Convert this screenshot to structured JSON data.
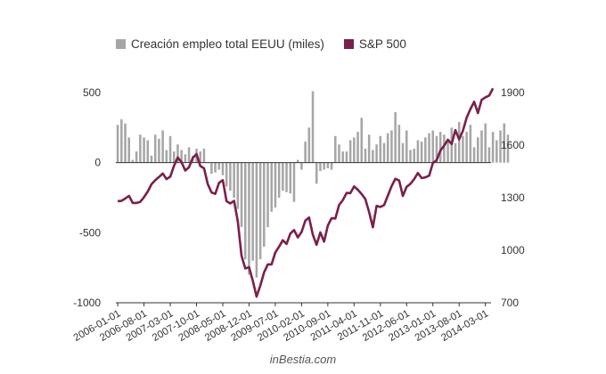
{
  "legend": {
    "bars_label": "Creación empleo total EEUU (miles)",
    "line_label": "S&P 500"
  },
  "credit": "inBestia.com",
  "colors": {
    "bars": "#a6a6a6",
    "line": "#7b1f4b",
    "axis": "#555555"
  },
  "chart_data": {
    "type": "bar+line",
    "x_tick_labels": [
      "2006-01-01",
      "2006-08-01",
      "2007-03-01",
      "2007-10-01",
      "2008-05-01",
      "2008-12-01",
      "2009-07-01",
      "2010-02-01",
      "2010-09-01",
      "2011-04-01",
      "2011-11-01",
      "2012-06-01",
      "2013-01-01",
      "2013-08-01",
      "2014-03-01"
    ],
    "series": [
      {
        "name": "Creación empleo total EEUU (miles)",
        "type": "bar",
        "axis": "left",
        "start": "2006-01",
        "values": [
          270,
          310,
          280,
          180,
          20,
          80,
          200,
          180,
          160,
          50,
          200,
          170,
          230,
          90,
          190,
          80,
          130,
          90,
          60,
          110,
          50,
          100,
          80,
          100,
          0,
          -80,
          -70,
          -50,
          -90,
          -170,
          -200,
          -250,
          -330,
          -460,
          -690,
          -800,
          -700,
          -820,
          -690,
          -600,
          -460,
          -350,
          -320,
          -250,
          -200,
          -210,
          -220,
          -280,
          20,
          -50,
          150,
          250,
          510,
          -150,
          -60,
          -50,
          -40,
          -50,
          190,
          130,
          80,
          80,
          160,
          180,
          220,
          320,
          100,
          200,
          90,
          130,
          190,
          140,
          210,
          230,
          360,
          270,
          140,
          230,
          90,
          100,
          160,
          150,
          180,
          210,
          230,
          190,
          220,
          200,
          170,
          250,
          140,
          290,
          190,
          220,
          270,
          110,
          180,
          230,
          280,
          110,
          220,
          160,
          230,
          280,
          200
        ],
        "ylim": [
          -1000,
          500
        ],
        "y_ticks": [
          500,
          0,
          -500,
          -1000
        ]
      },
      {
        "name": "S&P 500",
        "type": "line",
        "axis": "right",
        "start": "2006-01",
        "values": [
          1280,
          1282,
          1295,
          1310,
          1270,
          1270,
          1276,
          1303,
          1335,
          1377,
          1400,
          1418,
          1438,
          1406,
          1420,
          1482,
          1530,
          1503,
          1455,
          1474,
          1527,
          1549,
          1481,
          1468,
          1378,
          1330,
          1322,
          1385,
          1400,
          1280,
          1267,
          1282,
          1166,
          968,
          896,
          903,
          826,
          735,
          798,
          873,
          919,
          919,
          987,
          1020,
          1057,
          1036,
          1095,
          1115,
          1073,
          1104,
          1169,
          1187,
          1089,
          1031,
          1102,
          1049,
          1141,
          1183,
          1181,
          1258,
          1286,
          1327,
          1326,
          1364,
          1345,
          1321,
          1292,
          1218,
          1131,
          1253,
          1247,
          1258,
          1312,
          1366,
          1408,
          1398,
          1310,
          1362,
          1379,
          1406,
          1441,
          1412,
          1416,
          1426,
          1498,
          1514,
          1569,
          1597,
          1631,
          1606,
          1686,
          1633,
          1682,
          1757,
          1806,
          1848,
          1783,
          1859,
          1873,
          1883,
          1924
        ],
        "ylim": [
          700,
          1950
        ],
        "y_ticks": [
          1900,
          1600,
          1300,
          1000,
          700
        ]
      }
    ]
  }
}
